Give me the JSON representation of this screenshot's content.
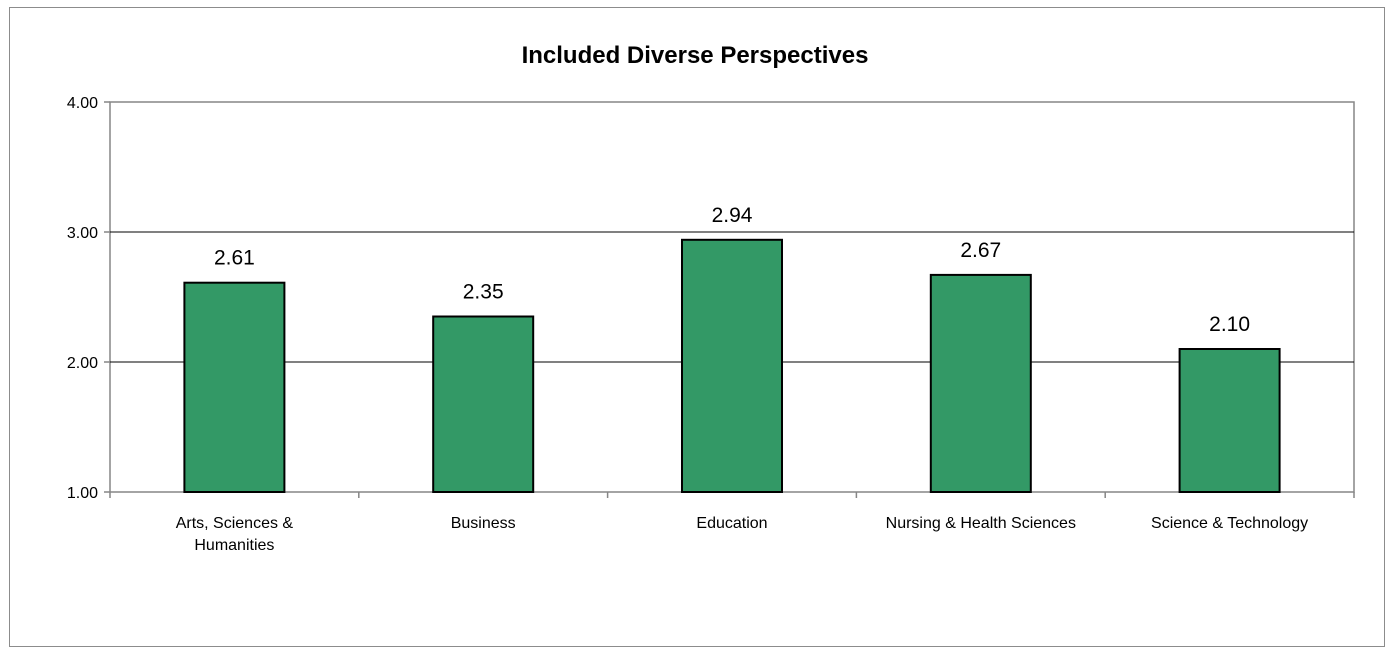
{
  "chart_data": {
    "type": "bar",
    "title": "Included Diverse Perspectives",
    "xlabel": "",
    "ylabel": "",
    "categories": [
      [
        "Arts, Sciences &",
        "Humanities"
      ],
      [
        "Business"
      ],
      [
        "Education"
      ],
      [
        "Nursing & Health Sciences"
      ],
      [
        "Science & Technology"
      ]
    ],
    "values": [
      2.61,
      2.35,
      2.94,
      2.67,
      2.1
    ],
    "value_labels": [
      "2.61",
      "2.35",
      "2.94",
      "2.67",
      "2.10"
    ],
    "ylim": [
      1.0,
      4.0
    ],
    "yticks": [
      1.0,
      2.0,
      3.0,
      4.0
    ],
    "ytick_labels": [
      "1.00",
      "2.00",
      "3.00",
      "4.00"
    ],
    "gridlines": [
      2.0,
      3.0
    ],
    "grid": true,
    "legend": "none",
    "colors": {
      "bar_fill": "#339966",
      "bar_stroke": "#000000",
      "axis": "#868686",
      "grid": "#000000"
    }
  }
}
